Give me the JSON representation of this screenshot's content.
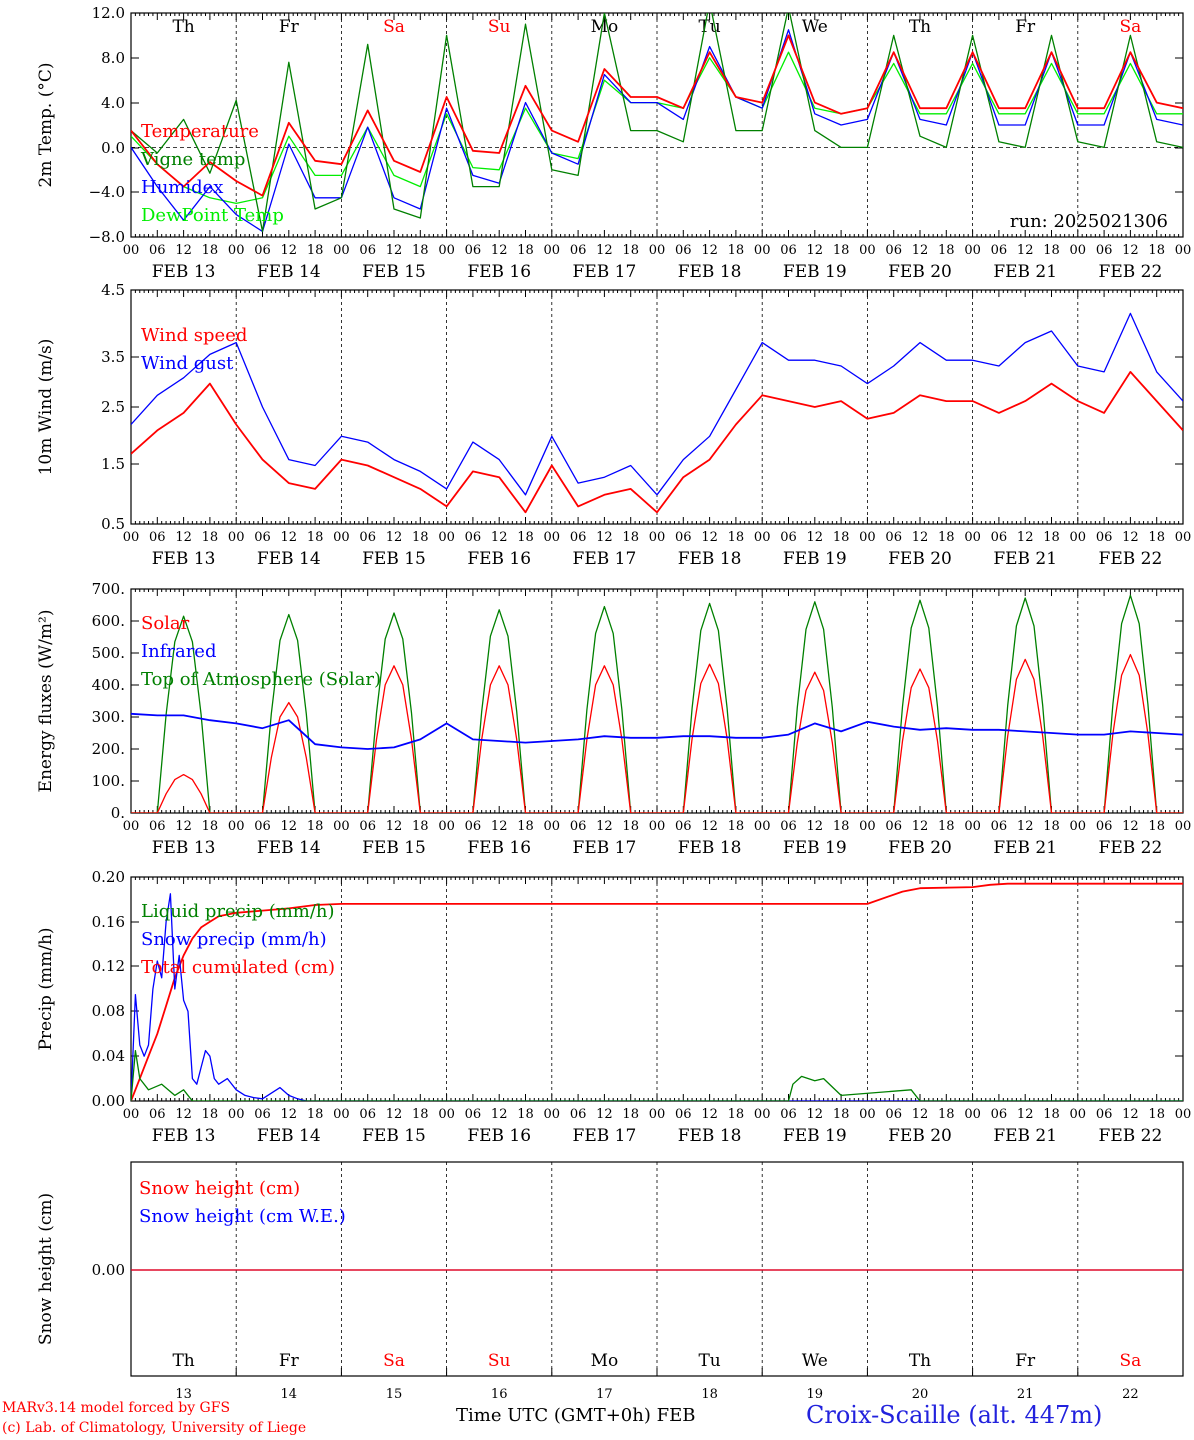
{
  "footer": {
    "model": "MARv3.14 model forced by GFS",
    "copyright": "(c) Lab. of Climatology, University of Liege",
    "time_axis": "Time UTC (GMT+0h) FEB",
    "station": "Croix-Scaille (alt. 447m)"
  },
  "colors": {
    "red": "#ff0000",
    "green": "#008000",
    "blue": "#0000ff",
    "light_green": "#00ee00",
    "station": "#2222dd"
  },
  "chart_data": [
    {
      "type": "line",
      "ylabel": "2m Temp. (°C)",
      "ylim": [
        -8,
        12
      ],
      "yticks": [
        "12.0",
        "8.0",
        "4.0",
        "0.0",
        "−4.0",
        "−8.0"
      ],
      "zero_line": true,
      "run_label": "run: 2025021306",
      "day_names": [
        "Th",
        "Fr",
        "Sa",
        "Su",
        "Mo",
        "Tu",
        "We",
        "Th",
        "Fr",
        "Sa"
      ],
      "day_name_colors": [
        "#000000",
        "#000000",
        "#ff0000",
        "#ff0000",
        "#000000",
        "#000000",
        "#000000",
        "#000000",
        "#000000",
        "#ff0000"
      ],
      "date_labels": [
        "FEB 13",
        "FEB 14",
        "FEB 15",
        "FEB 16",
        "FEB 17",
        "FEB 18",
        "FEB 19",
        "FEB 20",
        "FEB 21",
        "FEB 22"
      ],
      "hour_labels": [
        "00",
        "06",
        "12",
        "18"
      ],
      "series": [
        {
          "name": "Temperature",
          "color": "#ff0000",
          "x": [
            0,
            6,
            12,
            18,
            24,
            30,
            36,
            42,
            48,
            54,
            60,
            66,
            72,
            78,
            84,
            90,
            96,
            102,
            108,
            114,
            120,
            126,
            132,
            138,
            144,
            150,
            156,
            162,
            168,
            174,
            180,
            186,
            192,
            198,
            204,
            210,
            216,
            222,
            228,
            234,
            240
          ],
          "values": [
            1.5,
            -1.5,
            -3.5,
            -1.3,
            -3,
            -4.3,
            2.2,
            -1.2,
            -1.5,
            3.3,
            -1.2,
            -2.2,
            4.5,
            -0.3,
            -0.5,
            5.5,
            1.5,
            0.5,
            7,
            4.5,
            4.5,
            3.5,
            8.5,
            4.5,
            4,
            10,
            4,
            3,
            3.5,
            8.5,
            3.5,
            3.5,
            8.5,
            3.5,
            3.5,
            8.5,
            3.5,
            3.5,
            8.5,
            4,
            3.5
          ]
        },
        {
          "name": "Vigne temp",
          "color": "#008000",
          "x": [
            0,
            6,
            12,
            18,
            24,
            30,
            36,
            42,
            48,
            54,
            60,
            66,
            72,
            78,
            84,
            90,
            96,
            102,
            108,
            114,
            120,
            126,
            132,
            138,
            144,
            150,
            156,
            162,
            168,
            174,
            180,
            186,
            192,
            198,
            204,
            210,
            216,
            222,
            228,
            234,
            240
          ],
          "values": [
            1.5,
            -0.5,
            2.5,
            -2.3,
            4.2,
            -7.5,
            7.6,
            -5.5,
            -4.5,
            9.2,
            -5.5,
            -6.3,
            10,
            -3.5,
            -3.5,
            11,
            -2,
            -2.5,
            12,
            1.5,
            1.5,
            0.5,
            13,
            1.5,
            1.5,
            12.5,
            1.5,
            0,
            0,
            10,
            1,
            0,
            10,
            0.5,
            0,
            10,
            0.5,
            0,
            10,
            0.5,
            0
          ]
        },
        {
          "name": "Humidex",
          "color": "#0000ff",
          "x": [
            0,
            6,
            12,
            18,
            24,
            30,
            36,
            42,
            48,
            54,
            60,
            66,
            72,
            78,
            84,
            90,
            96,
            102,
            108,
            114,
            120,
            126,
            132,
            138,
            144,
            150,
            156,
            162,
            168,
            174,
            180,
            186,
            192,
            198,
            204,
            210,
            216,
            222,
            228,
            234,
            240
          ],
          "values": [
            0,
            -3.5,
            -6.5,
            -3.5,
            -6,
            -7.5,
            0.3,
            -4.5,
            -4.5,
            1.8,
            -4.5,
            -5.5,
            3.5,
            -2.5,
            -3.2,
            4,
            -0.5,
            -1.5,
            6.5,
            4,
            4,
            2.5,
            9,
            4.5,
            3.5,
            10.5,
            3,
            2,
            2.5,
            8.5,
            2.5,
            2,
            8.5,
            2,
            2,
            8.5,
            2,
            2,
            8.5,
            2.5,
            2
          ]
        },
        {
          "name": "DewPoint Temp",
          "color": "#00ee00",
          "x": [
            0,
            6,
            12,
            18,
            24,
            30,
            36,
            42,
            48,
            54,
            60,
            66,
            72,
            78,
            84,
            90,
            96,
            102,
            108,
            114,
            120,
            126,
            132,
            138,
            144,
            150,
            156,
            162,
            168,
            174,
            180,
            186,
            192,
            198,
            204,
            210,
            216,
            222,
            228,
            234,
            240
          ],
          "values": [
            1,
            -1.5,
            -3.5,
            -4.5,
            -5,
            -4.5,
            1,
            -2.5,
            -2.5,
            1.8,
            -2.5,
            -3.5,
            3,
            -1.8,
            -2,
            3.5,
            -0.5,
            -1,
            6,
            4,
            4,
            3.5,
            8,
            4.5,
            3.5,
            8.5,
            3.5,
            3,
            3.5,
            7.5,
            3,
            3,
            7.5,
            3,
            3,
            7.5,
            3,
            3,
            7.5,
            3,
            3
          ]
        }
      ]
    },
    {
      "type": "line",
      "ylabel": "10m Wind (m/s)",
      "ylim": [
        0.5,
        4.5
      ],
      "yticks": [
        "4.5",
        "3.5",
        "2.5",
        "1.5",
        "0.5"
      ],
      "date_labels": [
        "FEB 13",
        "FEB 14",
        "FEB 15",
        "FEB 16",
        "FEB 17",
        "FEB 18",
        "FEB 19",
        "FEB 20",
        "FEB 21",
        "FEB 22"
      ],
      "hour_labels": [
        "00",
        "06",
        "12",
        "18"
      ],
      "series": [
        {
          "name": "Wind speed",
          "color": "#ff0000",
          "x": [
            0,
            6,
            12,
            18,
            24,
            30,
            36,
            42,
            48,
            54,
            60,
            66,
            72,
            78,
            84,
            90,
            96,
            102,
            108,
            114,
            120,
            126,
            132,
            138,
            144,
            150,
            156,
            162,
            168,
            174,
            180,
            186,
            192,
            198,
            204,
            210,
            216,
            222,
            228,
            234,
            240
          ],
          "values": [
            1.7,
            2.1,
            2.4,
            2.9,
            2.2,
            1.6,
            1.2,
            1.1,
            1.6,
            1.5,
            1.3,
            1.1,
            0.8,
            1.4,
            1.3,
            0.7,
            1.5,
            0.8,
            1,
            1.1,
            0.7,
            1.3,
            1.6,
            2.2,
            2.7,
            2.6,
            2.5,
            2.6,
            2.3,
            2.4,
            2.7,
            2.6,
            2.6,
            2.4,
            2.6,
            2.9,
            2.6,
            2.4,
            3.1,
            2.6,
            2.1
          ]
        },
        {
          "name": "Wind gust",
          "color": "#0000ff",
          "x": [
            0,
            6,
            12,
            18,
            24,
            30,
            36,
            42,
            48,
            54,
            60,
            66,
            72,
            78,
            84,
            90,
            96,
            102,
            108,
            114,
            120,
            126,
            132,
            138,
            144,
            150,
            156,
            162,
            168,
            174,
            180,
            186,
            192,
            198,
            204,
            210,
            216,
            222,
            228,
            234,
            240
          ],
          "values": [
            2.2,
            2.7,
            3,
            3.4,
            3.6,
            2.5,
            1.6,
            1.5,
            2,
            1.9,
            1.6,
            1.4,
            1.1,
            1.9,
            1.6,
            1,
            2,
            1.2,
            1.3,
            1.5,
            1,
            1.6,
            2,
            2.8,
            3.6,
            3.3,
            3.3,
            3.2,
            2.9,
            3.2,
            3.6,
            3.3,
            3.3,
            3.2,
            3.6,
            3.8,
            3.2,
            3.1,
            4.1,
            3.1,
            2.6
          ]
        }
      ]
    },
    {
      "type": "line",
      "ylabel": "Energy fluxes (W/m²)",
      "ylim": [
        0,
        700
      ],
      "yticks": [
        "700.",
        "600.",
        "500.",
        "400.",
        "300.",
        "200.",
        "100.",
        "0."
      ],
      "date_labels": [
        "FEB 13",
        "FEB 14",
        "FEB 15",
        "FEB 16",
        "FEB 17",
        "FEB 18",
        "FEB 19",
        "FEB 20",
        "FEB 21",
        "FEB 22"
      ],
      "hour_labels": [
        "00",
        "06",
        "12",
        "18"
      ],
      "series": [
        {
          "name": "Solar",
          "color": "#ff0000",
          "peak_hour": 12,
          "daily_peaks": [
            120,
            345,
            460,
            460,
            460,
            465,
            440,
            450,
            480,
            495
          ]
        },
        {
          "name": "Infrared",
          "color": "#0000ff",
          "x": [
            0,
            6,
            12,
            18,
            24,
            30,
            36,
            42,
            48,
            54,
            60,
            66,
            72,
            78,
            84,
            90,
            96,
            102,
            108,
            114,
            120,
            126,
            132,
            138,
            144,
            150,
            156,
            162,
            168,
            174,
            180,
            186,
            192,
            198,
            204,
            210,
            216,
            222,
            228,
            234,
            240
          ],
          "values": [
            310,
            305,
            305,
            290,
            280,
            265,
            290,
            215,
            205,
            200,
            205,
            230,
            280,
            230,
            225,
            220,
            225,
            230,
            240,
            235,
            235,
            240,
            240,
            235,
            235,
            245,
            280,
            255,
            285,
            270,
            260,
            265,
            260,
            260,
            255,
            250,
            245,
            245,
            255,
            250,
            245
          ]
        },
        {
          "name": "Top of Atmosphere (Solar)",
          "color": "#008000",
          "peak_hour": 12,
          "daily_peaks": [
            615,
            620,
            625,
            635,
            645,
            655,
            660,
            665,
            672,
            680
          ]
        }
      ]
    },
    {
      "type": "line",
      "ylabel": "Precip (mm/h)",
      "ylim": [
        0,
        0.2
      ],
      "yticks": [
        "0.20",
        "0.16",
        "0.12",
        "0.08",
        "0.04",
        "0.00"
      ],
      "date_labels": [
        "FEB 13",
        "FEB 14",
        "FEB 15",
        "FEB 16",
        "FEB 17",
        "FEB 18",
        "FEB 19",
        "FEB 20",
        "FEB 21",
        "FEB 22"
      ],
      "hour_labels": [
        "00",
        "06",
        "12",
        "18"
      ],
      "series": [
        {
          "name": "Liquid precip (mm/h)",
          "color": "#008000",
          "x": [
            0,
            1,
            2,
            4,
            7,
            10,
            12,
            14,
            18,
            24,
            150,
            151,
            153,
            156,
            158,
            162,
            178,
            180,
            182,
            240
          ],
          "values": [
            0,
            0.045,
            0.02,
            0.01,
            0.015,
            0.005,
            0.01,
            0,
            0,
            0,
            0,
            0.015,
            0.022,
            0.018,
            0.02,
            0.005,
            0.01,
            0,
            0,
            0
          ]
        },
        {
          "name": "Snow precip (mm/h)",
          "color": "#0000ff",
          "x": [
            0,
            1,
            2,
            3,
            4,
            5,
            6,
            7,
            8,
            9,
            10,
            11,
            12,
            13,
            14,
            15,
            16,
            17,
            18,
            19,
            20,
            22,
            24,
            26,
            28,
            30,
            34,
            36,
            38,
            40,
            42,
            48,
            240
          ],
          "values": [
            0,
            0.095,
            0.05,
            0.04,
            0.05,
            0.1,
            0.125,
            0.11,
            0.16,
            0.185,
            0.1,
            0.13,
            0.09,
            0.08,
            0.02,
            0.015,
            0.03,
            0.045,
            0.04,
            0.02,
            0.015,
            0.02,
            0.01,
            0.005,
            0.003,
            0.002,
            0.012,
            0.005,
            0.002,
            0,
            0,
            0,
            0
          ]
        },
        {
          "name": "Total cumulated (cm)",
          "color": "#ff0000",
          "x": [
            0,
            2,
            4,
            6,
            8,
            10,
            12,
            14,
            16,
            18,
            20,
            24,
            30,
            36,
            42,
            48,
            96,
            144,
            168,
            176,
            180,
            192,
            196,
            200,
            240
          ],
          "values": [
            0,
            0.02,
            0.04,
            0.06,
            0.085,
            0.11,
            0.13,
            0.145,
            0.155,
            0.16,
            0.165,
            0.168,
            0.17,
            0.172,
            0.175,
            0.176,
            0.176,
            0.176,
            0.176,
            0.187,
            0.19,
            0.191,
            0.193,
            0.194,
            0.194
          ]
        }
      ]
    },
    {
      "type": "line",
      "ylabel": "Snow height (cm)",
      "yticks": [
        "0.00"
      ],
      "day_names": [
        "Th",
        "Fr",
        "Sa",
        "Su",
        "Mo",
        "Tu",
        "We",
        "Th",
        "Fr",
        "Sa"
      ],
      "day_name_colors": [
        "#000000",
        "#000000",
        "#ff0000",
        "#ff0000",
        "#000000",
        "#000000",
        "#000000",
        "#000000",
        "#000000",
        "#ff0000"
      ],
      "day_numbers": [
        "13",
        "14",
        "15",
        "16",
        "17",
        "18",
        "19",
        "20",
        "21",
        "22"
      ],
      "series": [
        {
          "name": "Snow height (cm)",
          "color": "#ff0000",
          "x": [
            0,
            240
          ],
          "values": [
            0,
            0
          ]
        },
        {
          "name": "Snow height (cm W.E.)",
          "color": "#0000ff",
          "x": [
            0,
            240
          ],
          "values": [
            0,
            0
          ]
        }
      ]
    }
  ]
}
